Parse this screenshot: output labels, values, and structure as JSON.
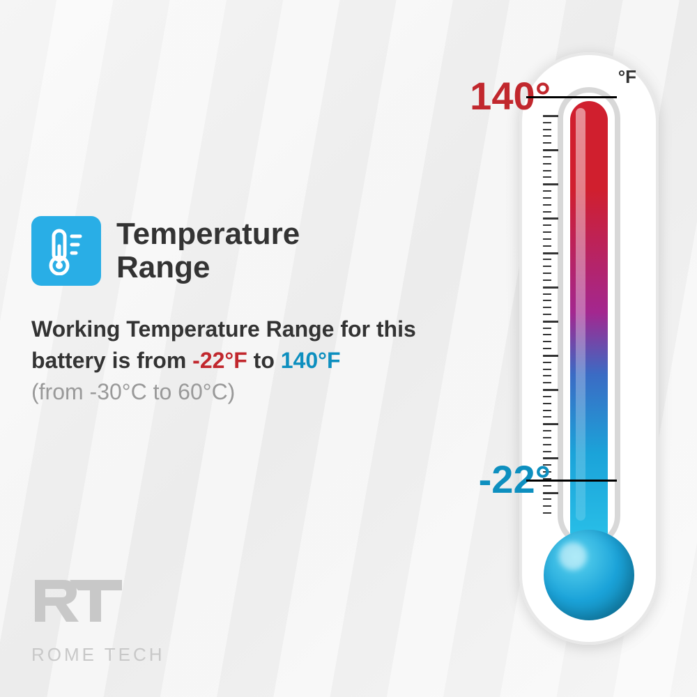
{
  "title": "Temperature\nRange",
  "description_prefix": "Working Temperature Range for this battery is from ",
  "low_f": "-22°F",
  "mid_text": " to ",
  "high_f": "140°F",
  "celsius_text": "(from -30°C to 60°C)",
  "thermometer": {
    "unit": "°F",
    "high_label": "140°",
    "low_label": "-22°",
    "high_color": "#c1272d",
    "low_color": "#0d8fbf",
    "gradient_top": "#d01f2e",
    "gradient_bottom": "#29c0e8",
    "bulb_color": "#1ba3d9",
    "tick_count_minor": 58,
    "major_every": 5
  },
  "icon": {
    "bg_color": "#29aee6",
    "name": "thermometer-icon"
  },
  "logo": {
    "initials": "RT",
    "name": "ROME TECH",
    "color": "#c8c8c8"
  },
  "colors": {
    "text": "#333333",
    "muted": "#999999",
    "bg": "#f2f2f2"
  }
}
